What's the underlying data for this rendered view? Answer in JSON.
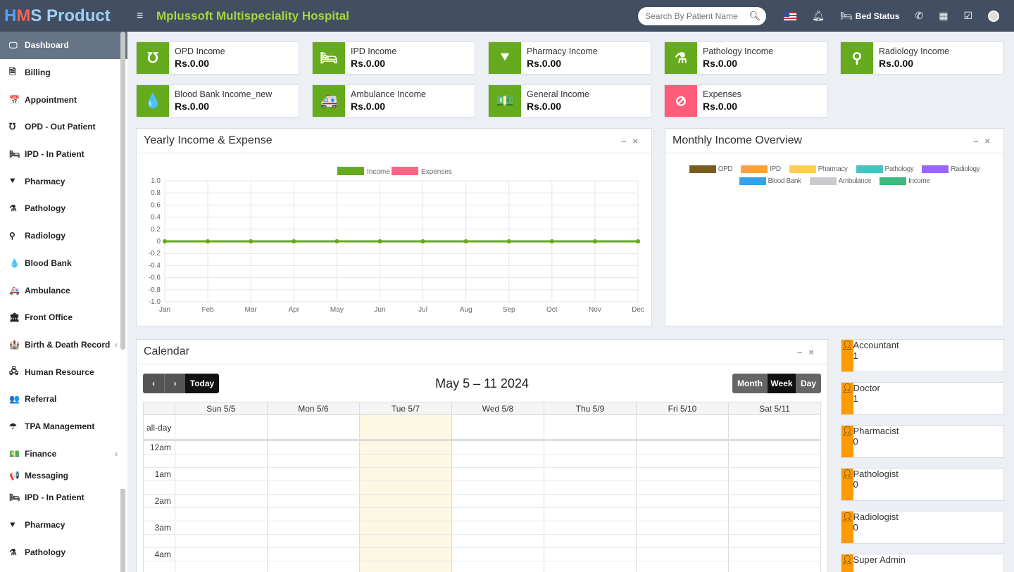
{
  "header": {
    "brand_h": "H",
    "brand_m": "M",
    "brand_rest": "S Product",
    "hospital": "Mplussoft Multispeciality Hospital",
    "search_placeholder": "Search By Patient Name",
    "bed_status": "Bed Status"
  },
  "sidebar": {
    "items": [
      {
        "label": "Dashboard",
        "icon": "monitor-icon",
        "glyph": "🖵"
      },
      {
        "label": "Billing",
        "icon": "file-icon",
        "glyph": "🗎"
      },
      {
        "label": "Appointment",
        "icon": "calendar-check-icon",
        "glyph": "📅"
      },
      {
        "label": "OPD - Out Patient",
        "icon": "stethoscope-icon",
        "glyph": "℧"
      },
      {
        "label": "IPD - In Patient",
        "icon": "procedures-icon",
        "glyph": "🛏"
      },
      {
        "label": "Pharmacy",
        "icon": "mortar-pestle-icon",
        "glyph": "⯆"
      },
      {
        "label": "Pathology",
        "icon": "flask-icon",
        "glyph": "⚗"
      },
      {
        "label": "Radiology",
        "icon": "microscope-icon",
        "glyph": "⚲"
      },
      {
        "label": "Blood Bank",
        "icon": "tint-icon",
        "glyph": "💧"
      },
      {
        "label": "Ambulance",
        "icon": "ambulance-icon",
        "glyph": "🚑"
      },
      {
        "label": "Front Office",
        "icon": "dungeon-icon",
        "glyph": "🏛"
      },
      {
        "label": "Birth & Death Record",
        "icon": "birth-death-icon",
        "glyph": "🏰",
        "caret": "‹"
      },
      {
        "label": "Human Resource",
        "icon": "sitemap-icon",
        "glyph": "🖧"
      },
      {
        "label": "Referral",
        "icon": "users-icon",
        "glyph": "👥"
      },
      {
        "label": "TPA Management",
        "icon": "umbrella-icon",
        "glyph": "☂"
      },
      {
        "label": "Finance",
        "icon": "money-icon",
        "glyph": "💵",
        "caret": "‹"
      },
      {
        "label": "Messaging",
        "icon": "bullhorn-icon",
        "glyph": "📢"
      },
      {
        "label": "IPD - In Patient",
        "icon": "procedures-icon",
        "glyph": "🛏"
      },
      {
        "label": "Pharmacy",
        "icon": "mortar-pestle-icon",
        "glyph": "⯆"
      },
      {
        "label": "Pathology",
        "icon": "flask-icon",
        "glyph": "⚗"
      }
    ]
  },
  "income_boxes": [
    {
      "label": "OPD Income",
      "value": "Rs.0.00",
      "glyph": "℧"
    },
    {
      "label": "IPD Income",
      "value": "Rs.0.00",
      "glyph": "🛏"
    },
    {
      "label": "Pharmacy Income",
      "value": "Rs.0.00",
      "glyph": "⯆"
    },
    {
      "label": "Pathology Income",
      "value": "Rs.0.00",
      "glyph": "⚗"
    },
    {
      "label": "Radiology Income",
      "value": "Rs.0.00",
      "glyph": "⚲"
    },
    {
      "label": "Blood Bank Income_new",
      "value": "Rs.0.00",
      "glyph": "💧"
    },
    {
      "label": "Ambulance Income",
      "value": "Rs.0.00",
      "glyph": "🚑"
    },
    {
      "label": "General Income",
      "value": "Rs.0.00",
      "glyph": "💵"
    },
    {
      "label": "Expenses",
      "value": "Rs.0.00",
      "glyph": "⊘"
    }
  ],
  "yearly_panel": {
    "title": "Yearly Income & Expense"
  },
  "monthly_panel": {
    "title": "Monthly Income Overview",
    "legend": [
      {
        "name": "OPD",
        "color": "#7a5c1e"
      },
      {
        "name": "IPD",
        "color": "#ff9f40"
      },
      {
        "name": "Pharmacy",
        "color": "#ffcd56"
      },
      {
        "name": "Pathology",
        "color": "#4bc0c0"
      },
      {
        "name": "Radiology",
        "color": "#9966ff"
      },
      {
        "name": "Blood Bank",
        "color": "#36a2eb"
      },
      {
        "name": "Ambulance",
        "color": "#c9cbcf"
      },
      {
        "name": "Income",
        "color": "#3cba7f"
      }
    ]
  },
  "chart_data": {
    "type": "line",
    "x": [
      "Jan",
      "Feb",
      "Mar",
      "Apr",
      "May",
      "Jun",
      "Jul",
      "Aug",
      "Sep",
      "Oct",
      "Nov",
      "Dec"
    ],
    "series": [
      {
        "name": "Income",
        "color": "#66aa1e",
        "values": [
          0,
          0,
          0,
          0,
          0,
          0,
          0,
          0,
          0,
          0,
          0,
          0
        ]
      },
      {
        "name": "Expenses",
        "color": "#ff6384",
        "values": [
          0,
          0,
          0,
          0,
          0,
          0,
          0,
          0,
          0,
          0,
          0,
          0
        ]
      }
    ],
    "yticks": [
      "1.0",
      "0.8",
      "0.6",
      "0.4",
      "0.2",
      "0",
      "-0.2",
      "-0.4",
      "-0.6",
      "-0.8",
      "-1.0"
    ],
    "ylim": [
      -1.0,
      1.0
    ],
    "grid": true,
    "legend": "top"
  },
  "calendar": {
    "title": "Calendar",
    "range": "May 5 – 11 2024",
    "today_btn": "Today",
    "prev": "‹",
    "next": "›",
    "views": [
      "Month",
      "Week",
      "Day"
    ],
    "active_view": "Week",
    "days": [
      "Sun 5/5",
      "Mon 5/6",
      "Tue 5/7",
      "Wed 5/8",
      "Thu 5/9",
      "Fri 5/10",
      "Sat 5/11"
    ],
    "today_index": 2,
    "allday_label": "all-day",
    "times": [
      "12am",
      "1am",
      "2am",
      "3am",
      "4am"
    ]
  },
  "staff": [
    {
      "label": "Accountant",
      "value": "1"
    },
    {
      "label": "Doctor",
      "value": "1"
    },
    {
      "label": "Pharmacist",
      "value": "0"
    },
    {
      "label": "Pathologist",
      "value": "0"
    },
    {
      "label": "Radiologist",
      "value": "0"
    },
    {
      "label": "Super Admin",
      "value": ""
    }
  ],
  "colors": {
    "topbar": "#424f63",
    "accent_green": "#66aa1e",
    "expense_pink": "#ff5c7a",
    "staff_orange": "#ff9a00"
  }
}
